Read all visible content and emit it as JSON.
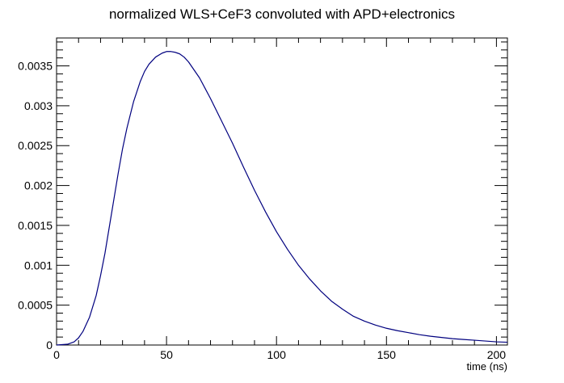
{
  "chart_data": {
    "type": "line",
    "title": "normalized WLS+CeF3 convoluted with APD+electronics",
    "xlabel": "time (ns)",
    "ylabel": "",
    "xlim": [
      0,
      205
    ],
    "ylim": [
      0,
      0.00385
    ],
    "grid": false,
    "legend": "none",
    "x_ticks": [
      0,
      50,
      100,
      150,
      200
    ],
    "x_tick_labels": [
      "0",
      "50",
      "100",
      "150",
      "200"
    ],
    "y_ticks": [
      0,
      0.0005,
      0.001,
      0.0015,
      0.002,
      0.0025,
      0.003,
      0.0035
    ],
    "y_tick_labels": [
      "0",
      "0.0005",
      "0.001",
      "0.0015",
      "0.002",
      "0.0025",
      "0.003",
      "0.0035"
    ],
    "series": [
      {
        "color": "#00007f",
        "x": [
          0,
          5,
          8,
          10,
          12,
          15,
          18,
          20,
          22,
          25,
          28,
          30,
          32,
          35,
          38,
          40,
          42,
          45,
          48,
          50,
          52,
          54,
          55,
          56,
          58,
          60,
          65,
          70,
          75,
          80,
          85,
          90,
          95,
          100,
          105,
          110,
          115,
          120,
          125,
          130,
          135,
          140,
          145,
          150,
          155,
          160,
          165,
          170,
          175,
          180,
          185,
          190,
          195,
          200,
          205
        ],
        "y": [
          0,
          1e-05,
          4e-05,
          9e-05,
          0.00017,
          0.00035,
          0.00062,
          0.00087,
          0.00115,
          0.00165,
          0.00215,
          0.00246,
          0.00272,
          0.00305,
          0.0033,
          0.00343,
          0.00352,
          0.00361,
          0.00366,
          0.00368,
          0.00368,
          0.00367,
          0.00366,
          0.00365,
          0.00361,
          0.00355,
          0.00335,
          0.00309,
          0.00281,
          0.00253,
          0.00223,
          0.00194,
          0.00167,
          0.00142,
          0.0012,
          0.001,
          0.00083,
          0.00068,
          0.00055,
          0.00045,
          0.00036,
          0.0003,
          0.00025,
          0.00021,
          0.00018,
          0.000155,
          0.00013,
          0.00011,
          9.5e-05,
          8e-05,
          7e-05,
          6e-05,
          5e-05,
          4e-05,
          3.5e-05
        ]
      }
    ]
  }
}
